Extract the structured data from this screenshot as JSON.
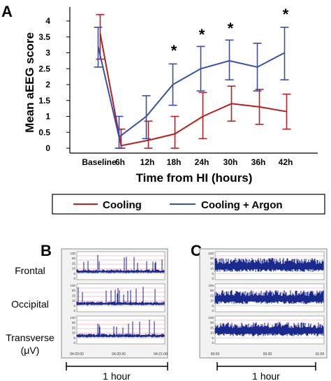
{
  "panel_labels": {
    "a": "A",
    "b": "B",
    "c": "C"
  },
  "chart_data": {
    "type": "line",
    "ylabel": "Mean aEEG score",
    "xlabel": "Time from HI (hours)",
    "categories": [
      "Baseline",
      "6h",
      "12h",
      "18h",
      "24h",
      "30h",
      "36h",
      "42h"
    ],
    "ylim": [
      0,
      4
    ],
    "yticks": [
      "0",
      "0.5",
      "1",
      "1.5",
      "2",
      "2.5",
      "3",
      "3.5",
      "4"
    ],
    "significance": [
      "",
      "",
      "",
      "*",
      "*",
      "*",
      "",
      "*"
    ],
    "legend_position": "bottom",
    "series": [
      {
        "name": "Cooling",
        "color": "#b22222",
        "values": [
          3.6,
          0.08,
          0.25,
          0.45,
          1.0,
          1.4,
          1.3,
          1.15
        ],
        "err_hi": [
          4.2,
          0.6,
          0.85,
          1.0,
          1.75,
          1.95,
          1.85,
          1.7
        ],
        "err_lo": [
          2.8,
          0.0,
          0.0,
          0.0,
          0.3,
          0.85,
          0.75,
          0.6
        ]
      },
      {
        "name": "Cooling + Argon",
        "color": "#3a4fa5",
        "values": [
          3.2,
          0.35,
          1.0,
          2.0,
          2.5,
          2.75,
          2.55,
          3.0
        ],
        "err_hi": [
          3.8,
          1.0,
          1.65,
          2.65,
          3.2,
          3.4,
          3.3,
          3.8
        ],
        "err_lo": [
          2.55,
          0.0,
          0.3,
          1.35,
          1.8,
          2.15,
          1.8,
          2.15
        ]
      }
    ]
  },
  "traces": {
    "channels": [
      "Frontal",
      "Occipital",
      "Transverse",
      "(μV)"
    ],
    "scale_ticks": [
      "100",
      "50",
      "25",
      "10",
      "5",
      "0"
    ],
    "b_time_labels": [
      "04:20:00",
      "04:20:30",
      "04:21:00"
    ],
    "c_time_labels": [
      "00:00",
      "00:30",
      "01:00"
    ],
    "scale_bar_label": "1 hour"
  }
}
